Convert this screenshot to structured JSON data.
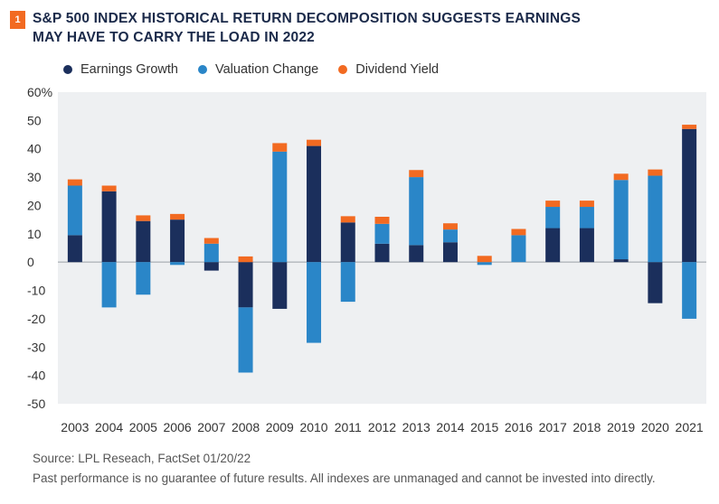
{
  "badge": "1",
  "title": {
    "line1": "S&P 500 INDEX HISTORICAL RETURN DECOMPOSITION SUGGESTS EARNINGS",
    "line2": "MAY HAVE TO CARRY THE LOAD IN 2022"
  },
  "colors": {
    "earnings": "#1b2f5c",
    "valuation": "#2a86c8",
    "dividend": "#f26a21",
    "plot_bg": "#eef0f2"
  },
  "chart_data": {
    "type": "bar",
    "stacked": true,
    "categories": [
      "2003",
      "2004",
      "2005",
      "2006",
      "2007",
      "2008",
      "2009",
      "2010",
      "2011",
      "2012",
      "2013",
      "2014",
      "2015",
      "2016",
      "2017",
      "2018",
      "2019",
      "2020",
      "2021"
    ],
    "series": [
      {
        "name": "Earnings Growth",
        "values": [
          9.5,
          25,
          14.5,
          15,
          -3,
          -16,
          -16.5,
          41,
          14,
          6.5,
          6,
          7,
          0,
          0,
          12,
          12,
          1,
          -14.5,
          47
        ]
      },
      {
        "name": "Valuation Change",
        "values": [
          17.5,
          -16,
          -11.5,
          -1,
          6.5,
          -23,
          39,
          -28.5,
          -14,
          7,
          24,
          4.5,
          -1,
          9.5,
          7.5,
          7.5,
          28,
          30.5,
          -20
        ]
      },
      {
        "name": "Dividend Yield",
        "values": [
          2.2,
          2,
          2,
          2,
          2,
          2,
          3,
          2.2,
          2.2,
          2.5,
          2.5,
          2.2,
          2.2,
          2.2,
          2.2,
          2.2,
          2.2,
          2.2,
          1.5
        ]
      }
    ],
    "ylim": [
      -50,
      60
    ],
    "yticks": [
      "60%",
      "50",
      "40",
      "30",
      "20",
      "10",
      "0",
      "-10",
      "-20",
      "-30",
      "-40",
      "-50"
    ],
    "legend_position": "top-left",
    "grid": false
  },
  "footer": {
    "source": "Source:  LPL Reseach, FactSet 01/20/22",
    "disclaimer": "Past performance is no guarantee of future results. All indexes are unmanaged and cannot be invested into directly."
  }
}
